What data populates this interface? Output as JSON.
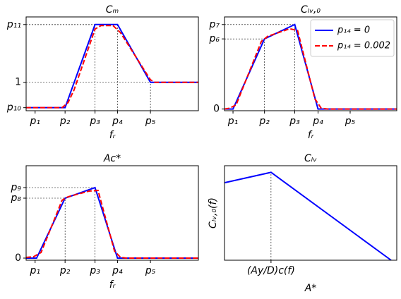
{
  "chart_data": [
    {
      "type": "line",
      "title": "Cₘ",
      "xlabel": "fᵣ",
      "xlim": [
        -0.3,
        5.45
      ],
      "ylim": [
        0.44,
        2.29
      ],
      "xticks": [
        {
          "value": 0,
          "label": "p₁"
        },
        {
          "value": 1,
          "label": "p₂"
        },
        {
          "value": 2,
          "label": "p₃"
        },
        {
          "value": 2.75,
          "label": "p₄"
        },
        {
          "value": 3.85,
          "label": "p₅"
        }
      ],
      "yticks": [
        {
          "value": 0.5,
          "label": "p₁₀"
        },
        1,
        {
          "value": 2.14,
          "label": "p₁₁"
        }
      ],
      "guides": [
        [
          2,
          2
        ],
        [
          3,
          2
        ],
        [
          4,
          1
        ]
      ],
      "series": [
        {
          "color": "#0000ff",
          "linestyle": "solid",
          "x": [
            -0.3,
            1,
            2,
            2.75,
            3.85,
            5.45
          ],
          "values": [
            0.5,
            0.5,
            2.14,
            2.14,
            1,
            1
          ]
        },
        {
          "color": "#ff0000",
          "linestyle": "dashed",
          "x": [
            -0.3,
            0.9,
            1.1,
            1.3,
            2,
            2.2,
            2.6,
            2.85,
            3.85,
            4.0,
            5.45
          ],
          "values": [
            0.5,
            0.5,
            0.6,
            0.85,
            2.05,
            2.12,
            2.12,
            1.98,
            1.05,
            1.0,
            1.0
          ]
        }
      ]
    },
    {
      "type": "line",
      "title": "Cₗᵥ,₀",
      "xlabel": "fᵣ",
      "xlim": [
        -0.27,
        5.2
      ],
      "ylim": [
        -0.02,
        1.09
      ],
      "xticks": [
        {
          "value": 0,
          "label": "p₁"
        },
        {
          "value": 1,
          "label": "p₂"
        },
        {
          "value": 1.96,
          "label": "p₃"
        },
        {
          "value": 2.7,
          "label": "p₄"
        },
        {
          "value": 3.72,
          "label": "p₅"
        }
      ],
      "yticks": [
        0,
        {
          "value": 0.83,
          "label": "p₆"
        },
        {
          "value": 1,
          "label": "p₇"
        }
      ],
      "guides": [
        [
          1,
          1
        ],
        [
          2,
          2
        ]
      ],
      "legend": "upper right",
      "series": [
        {
          "name": "p₁₄ = 0",
          "color": "#0000ff",
          "linestyle": "solid",
          "x": [
            -0.27,
            0,
            1,
            1.96,
            2.7,
            5.2
          ],
          "values": [
            0,
            0,
            0.83,
            1,
            0,
            0
          ]
        },
        {
          "name": "p₁₄ = 0.002",
          "color": "#ff0000",
          "linestyle": "dashed",
          "x": [
            -0.27,
            -0.1,
            0.1,
            0.9,
            1.1,
            1.8,
            2.05,
            2.6,
            2.8,
            3.0,
            5.2
          ],
          "values": [
            0,
            0.01,
            0.05,
            0.8,
            0.86,
            0.95,
            0.93,
            0.12,
            0.01,
            0,
            0
          ]
        }
      ]
    },
    {
      "type": "line",
      "title": "Ac*",
      "xlabel": "fᵣ",
      "xlim": [
        -0.3,
        5.45
      ],
      "ylim": [
        -0.03,
        1.31
      ],
      "xticks": [
        {
          "value": 0,
          "label": "p₁"
        },
        {
          "value": 1,
          "label": "p₂"
        },
        {
          "value": 2,
          "label": "p₃"
        },
        {
          "value": 2.75,
          "label": "p₄"
        },
        {
          "value": 3.85,
          "label": "p₅"
        }
      ],
      "yticks": [
        0,
        {
          "value": 0.85,
          "label": "p₈"
        },
        {
          "value": 1,
          "label": "p₉"
        }
      ],
      "guides": [
        [
          1,
          1
        ],
        [
          2,
          2
        ]
      ],
      "series": [
        {
          "color": "#0000ff",
          "linestyle": "solid",
          "x": [
            -0.3,
            0.05,
            1,
            2,
            2.75,
            5.45
          ],
          "values": [
            0,
            0,
            0.85,
            1,
            0,
            0
          ]
        },
        {
          "color": "#ff0000",
          "linestyle": "dashed",
          "x": [
            -0.3,
            -0.05,
            0.2,
            0.9,
            1.1,
            1.8,
            2.1,
            2.65,
            2.85,
            3.05,
            5.45
          ],
          "values": [
            0.01,
            0.02,
            0.08,
            0.82,
            0.87,
            0.95,
            0.96,
            0.1,
            0.01,
            0,
            0
          ]
        }
      ]
    },
    {
      "type": "line",
      "title": "Cₗᵥ",
      "xlabel": "A*",
      "ylabel": "Cₗᵥ,₀(f)",
      "xlim": [
        0,
        1
      ],
      "ylim": [
        0,
        1
      ],
      "xticks": [
        {
          "value": 0.27,
          "label": "(Ay/D)c(f)"
        }
      ],
      "yticks": [],
      "point_guides": [
        [
          0,
          1
        ]
      ],
      "series": [
        {
          "color": "#0000ff",
          "linestyle": "solid",
          "x": [
            0,
            0.27,
            0.967
          ],
          "values": [
            0.82,
            0.93,
            0
          ]
        }
      ]
    }
  ]
}
